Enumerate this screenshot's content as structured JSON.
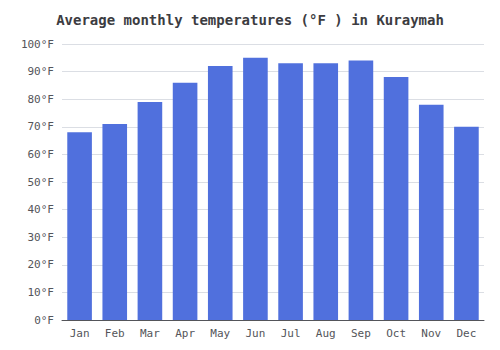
{
  "chart_data": {
    "type": "bar",
    "title": "Average monthly temperatures (°F ) in Kuraymah",
    "categories": [
      "Jan",
      "Feb",
      "Mar",
      "Apr",
      "May",
      "Jun",
      "Jul",
      "Aug",
      "Sep",
      "Oct",
      "Nov",
      "Dec"
    ],
    "values": [
      68,
      71,
      79,
      86,
      92,
      95,
      93,
      93,
      94,
      88,
      78,
      70
    ],
    "ylim": [
      0,
      100
    ],
    "yticks": [
      {
        "value": 0,
        "label": "0°F"
      },
      {
        "value": 10,
        "label": "10°F"
      },
      {
        "value": 20,
        "label": "20°F"
      },
      {
        "value": 30,
        "label": "30°F"
      },
      {
        "value": 40,
        "label": "40°F"
      },
      {
        "value": 50,
        "label": "50°F"
      },
      {
        "value": 60,
        "label": "60°F"
      },
      {
        "value": 70,
        "label": "70°F"
      },
      {
        "value": 80,
        "label": "80°F"
      },
      {
        "value": 90,
        "label": "90°F"
      },
      {
        "value": 100,
        "label": "100°F"
      }
    ],
    "grid": true
  }
}
